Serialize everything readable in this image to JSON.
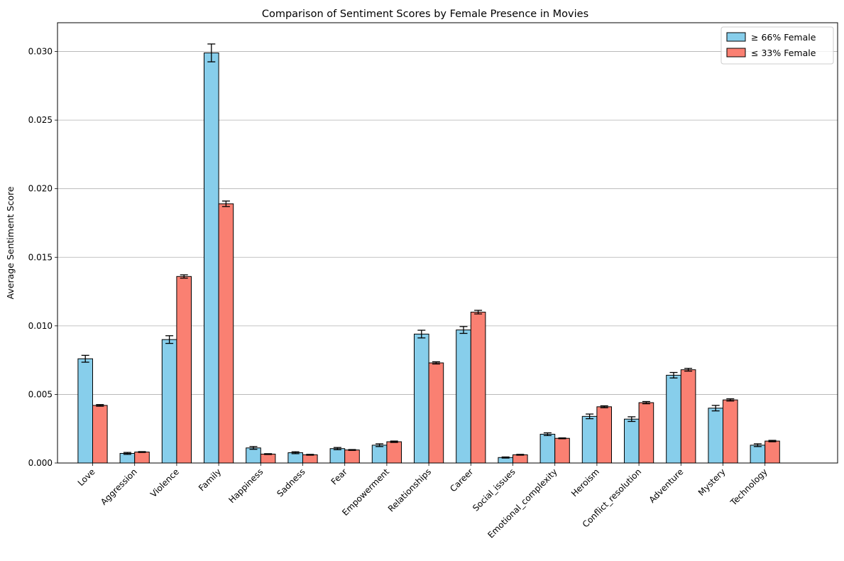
{
  "chart_data": {
    "type": "bar",
    "title": "Comparison of Sentiment Scores by Female Presence in Movies",
    "xlabel": "",
    "ylabel": "Average Sentiment Score",
    "ylim": [
      0,
      0.0321
    ],
    "yticks": [
      0.0,
      0.005,
      0.01,
      0.015,
      0.02,
      0.025,
      0.03
    ],
    "ytick_labels": [
      "0.000",
      "0.005",
      "0.010",
      "0.015",
      "0.020",
      "0.025",
      "0.030"
    ],
    "grid": "y",
    "legend_position": "top-right",
    "categories": [
      "Love",
      "Aggression",
      "Violence",
      "Family",
      "Happiness",
      "Sadness",
      "Fear",
      "Empowerment",
      "Relationships",
      "Career",
      "Social_issues",
      "Emotional_complexity",
      "Heroism",
      "Conflict_resolution",
      "Adventure",
      "Mystery",
      "Technology"
    ],
    "series": [
      {
        "name": "≥ 66% Female",
        "color": "#87CEEB",
        "values": [
          0.0076,
          0.0007,
          0.009,
          0.0299,
          0.0011,
          0.00075,
          0.00105,
          0.0013,
          0.0094,
          0.0097,
          0.0004,
          0.0021,
          0.0034,
          0.0032,
          0.0064,
          0.004,
          0.0013
        ],
        "errors": [
          0.00025,
          7e-05,
          0.00028,
          0.00065,
          0.0001,
          7e-05,
          8e-05,
          0.0001,
          0.00028,
          0.00025,
          4e-05,
          0.0001,
          0.00017,
          0.00017,
          0.0002,
          0.0002,
          0.0001
        ]
      },
      {
        "name": "≤ 33% Female",
        "color": "#FA8072",
        "values": [
          0.0042,
          0.0008,
          0.0136,
          0.0189,
          0.00065,
          0.0006,
          0.00095,
          0.00155,
          0.0073,
          0.011,
          0.0006,
          0.0018,
          0.0041,
          0.0044,
          0.0068,
          0.0046,
          0.0016
        ],
        "errors": [
          6e-05,
          3e-05,
          0.00012,
          0.0002,
          3e-05,
          3e-05,
          3e-05,
          5e-05,
          8e-05,
          0.00013,
          3e-05,
          3e-05,
          7e-05,
          8e-05,
          0.0001,
          8e-05,
          5e-05
        ]
      }
    ]
  }
}
